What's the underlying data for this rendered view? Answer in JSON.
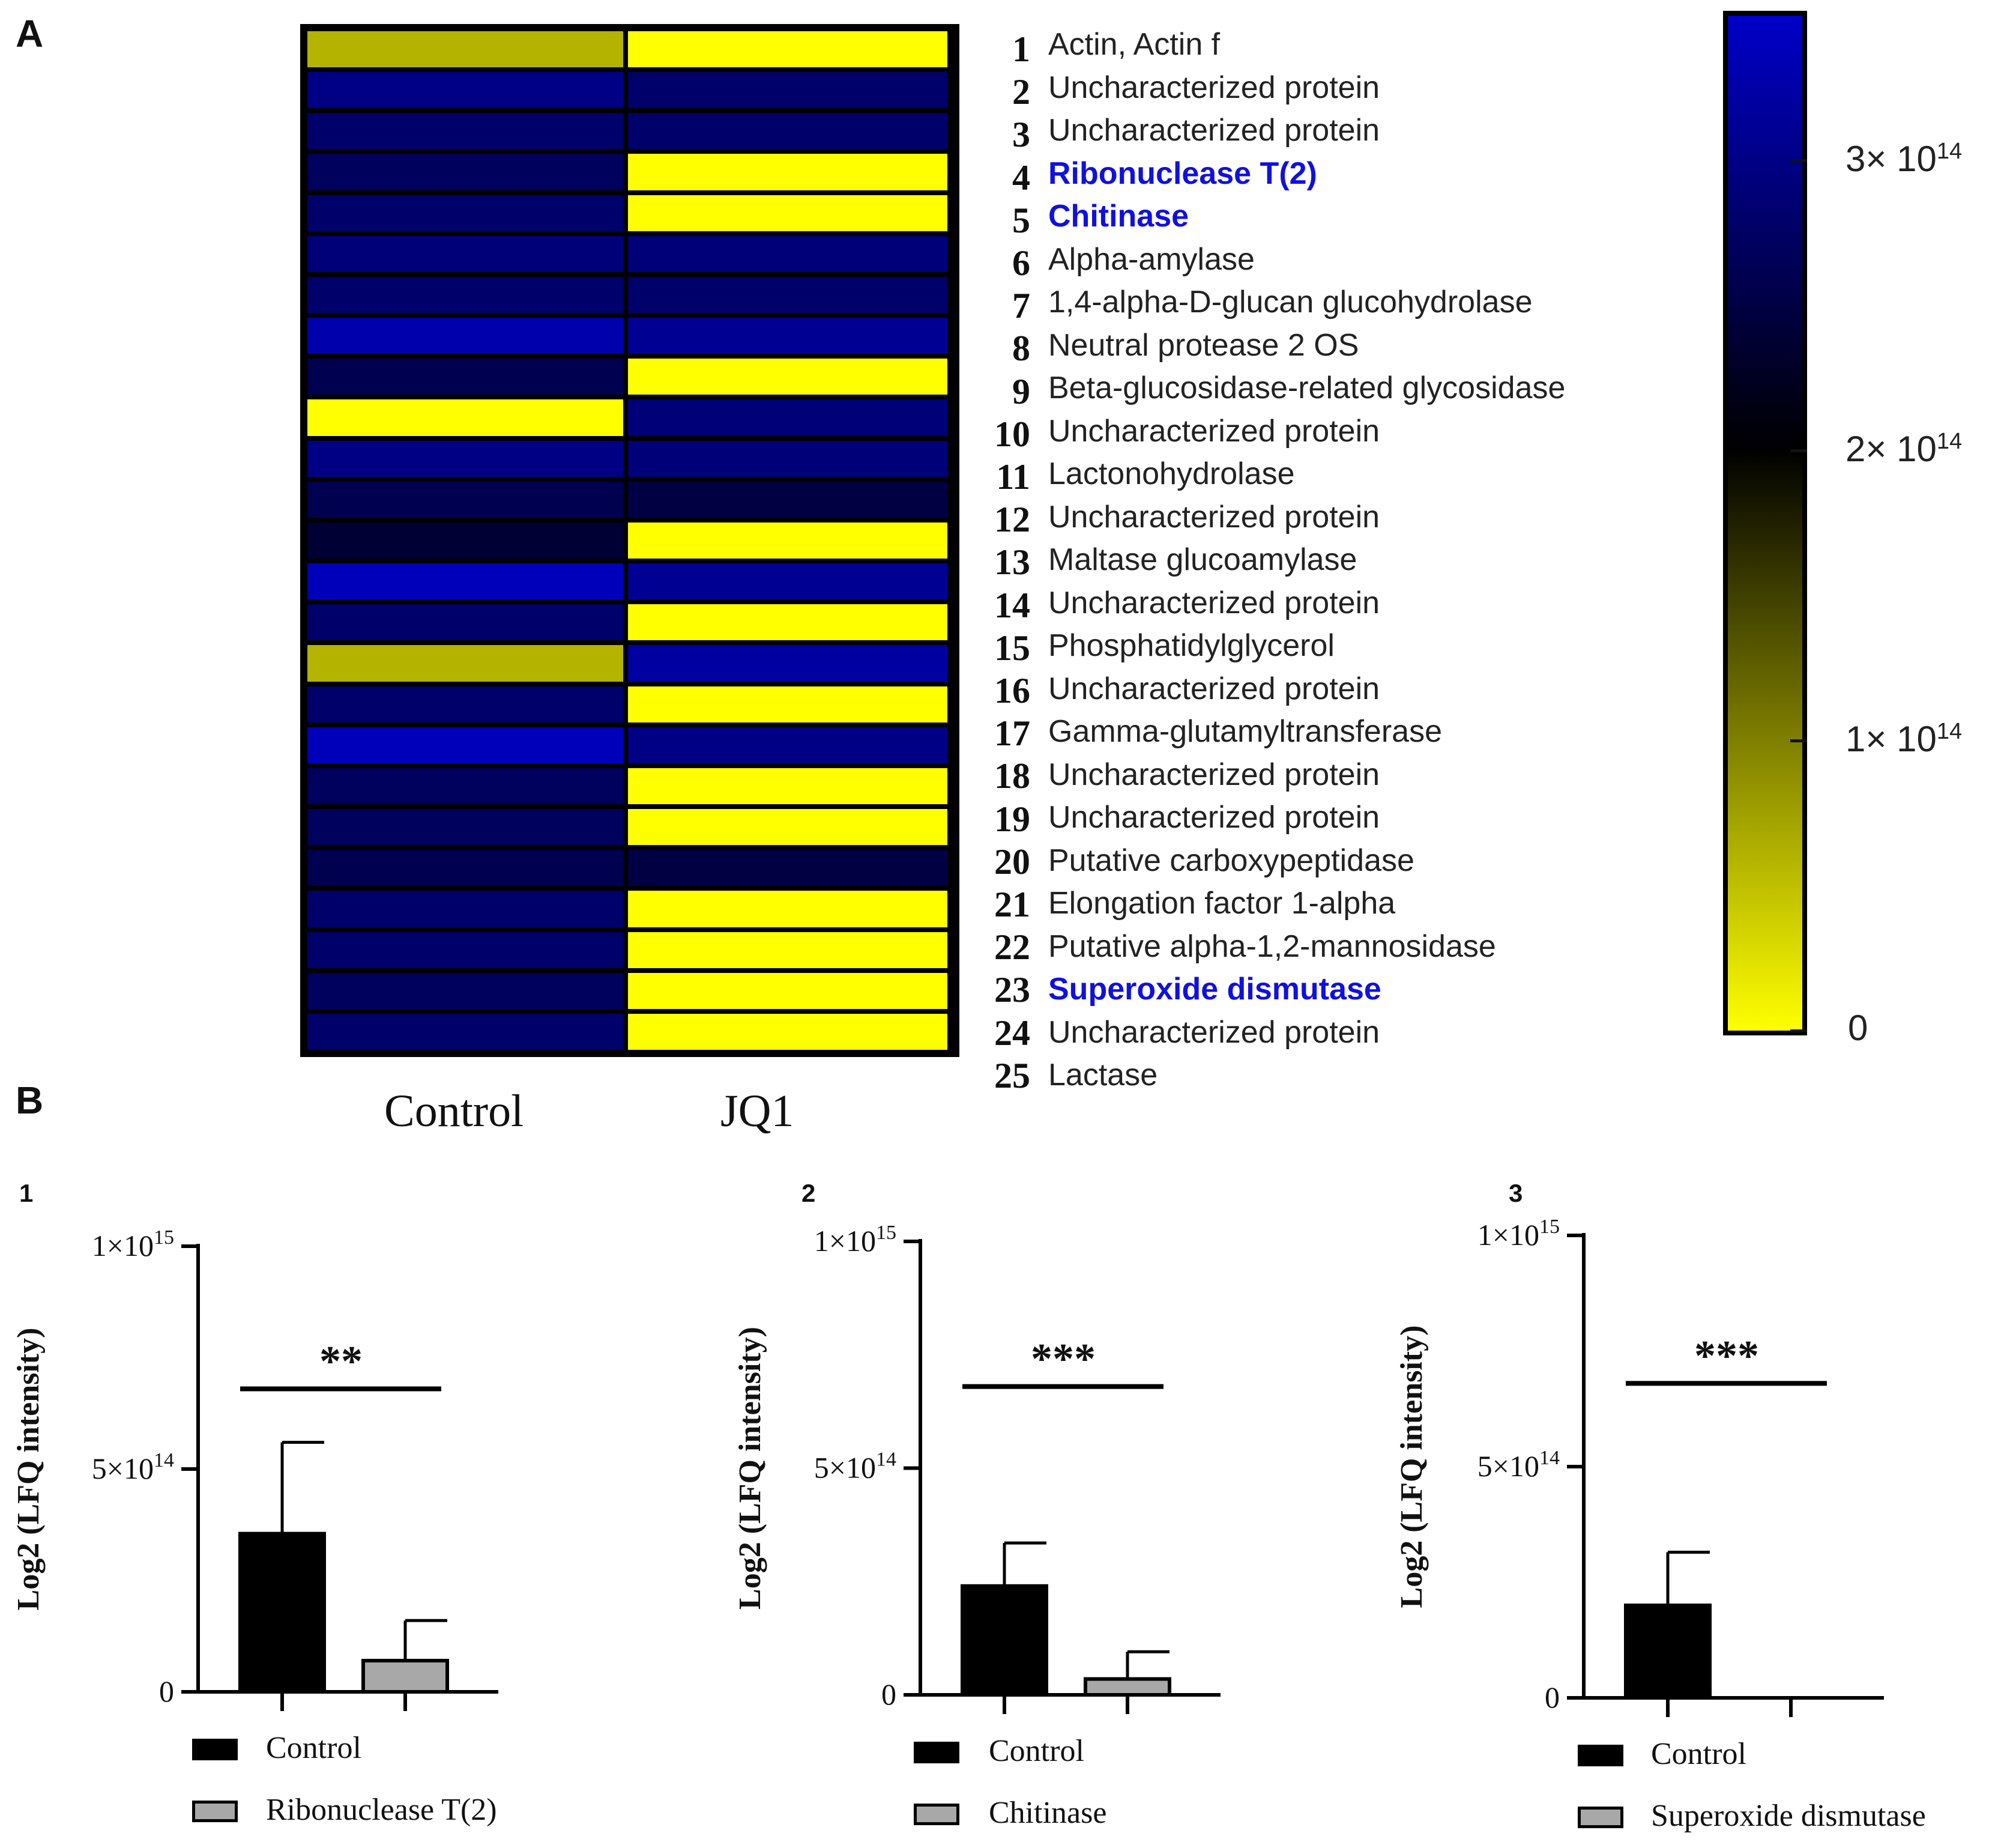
{
  "panel_a": {
    "label": "A",
    "columns": [
      "Control",
      "JQ1"
    ],
    "colorbar": {
      "colors": {
        "low": "#ffff00",
        "mid": "#000000",
        "high": "#0000c8",
        "highlight_text": "#1010e0"
      },
      "ticks": [
        {
          "value": 0,
          "base": "0",
          "exp": ""
        },
        {
          "value": 100000000000000.0,
          "base": "1× 10",
          "exp": "14"
        },
        {
          "value": 200000000000000.0,
          "base": "2× 10",
          "exp": "14"
        },
        {
          "value": 300000000000000.0,
          "base": "3× 10",
          "exp": "14"
        }
      ]
    },
    "rows": [
      {
        "num": "1",
        "name": "Actin, Actin f",
        "highlight": false
      },
      {
        "num": "2",
        "name": "Uncharacterized protein",
        "highlight": false
      },
      {
        "num": "3",
        "name": "Uncharacterized protein",
        "highlight": false
      },
      {
        "num": "4",
        "name": "Ribonuclease T(2)",
        "highlight": true
      },
      {
        "num": "5",
        "name": "Chitinase",
        "highlight": true
      },
      {
        "num": "6",
        "name": "Alpha-amylase",
        "highlight": false
      },
      {
        "num": "7",
        "name": "1,4-alpha-D-glucan glucohydrolase",
        "highlight": false
      },
      {
        "num": "8",
        "name": "Neutral protease 2 OS",
        "highlight": false
      },
      {
        "num": "9",
        "name": "Beta-glucosidase-related glycosidase",
        "highlight": false
      },
      {
        "num": "10",
        "name": "Uncharacterized protein",
        "highlight": false
      },
      {
        "num": "11",
        "name": "Lactonohydrolase",
        "highlight": false
      },
      {
        "num": "12",
        "name": "Uncharacterized protein",
        "highlight": false
      },
      {
        "num": "13",
        "name": "Maltase glucoamylase",
        "highlight": false
      },
      {
        "num": "14",
        "name": "Uncharacterized protein",
        "highlight": false
      },
      {
        "num": "15",
        "name": "Phosphatidylglycerol",
        "highlight": false
      },
      {
        "num": "16",
        "name": "Uncharacterized protein",
        "highlight": false
      },
      {
        "num": "17",
        "name": "Gamma-glutamyltransferase",
        "highlight": false
      },
      {
        "num": "18",
        "name": "Uncharacterized protein",
        "highlight": false
      },
      {
        "num": "19",
        "name": "Uncharacterized protein",
        "highlight": false
      },
      {
        "num": "20",
        "name": "Putative carboxypeptidase",
        "highlight": false
      },
      {
        "num": "21",
        "name": "Elongation factor 1-alpha",
        "highlight": false
      },
      {
        "num": "22",
        "name": "Putative alpha-1,2-mannosidase",
        "highlight": false
      },
      {
        "num": "23",
        "name": "Superoxide dismutase",
        "highlight": true
      },
      {
        "num": "24",
        "name": "Uncharacterized protein",
        "highlight": false
      },
      {
        "num": "25",
        "name": "Lactase",
        "highlight": false
      }
    ]
  },
  "panel_b": {
    "label": "B",
    "colors": {
      "control": "#000000",
      "treated": "#a8a8a8",
      "axis": "#000000"
    }
  },
  "chart_data": [
    {
      "type": "heatmap",
      "title": "",
      "xlabel": "",
      "ylabel": "",
      "columns": [
        "Control",
        "JQ1"
      ],
      "row_count": 25,
      "vrange": [
        0,
        350000000000000.0
      ],
      "values": [
        [
          60000000000000.0,
          0.0
        ],
        [
          300000000000000.0,
          280000000000000.0
        ],
        [
          280000000000000.0,
          280000000000000.0
        ],
        [
          270000000000000.0,
          0.0
        ],
        [
          280000000000000.0,
          0.0
        ],
        [
          290000000000000.0,
          290000000000000.0
        ],
        [
          280000000000000.0,
          280000000000000.0
        ],
        [
          330000000000000.0,
          310000000000000.0
        ],
        [
          260000000000000.0,
          0.0
        ],
        [
          0.0,
          290000000000000.0
        ],
        [
          300000000000000.0,
          290000000000000.0
        ],
        [
          260000000000000.0,
          250000000000000.0
        ],
        [
          240000000000000.0,
          0.0
        ],
        [
          340000000000000.0,
          310000000000000.0
        ],
        [
          280000000000000.0,
          0.0
        ],
        [
          60000000000000.0,
          320000000000000.0
        ],
        [
          280000000000000.0,
          0.0
        ],
        [
          340000000000000.0,
          300000000000000.0
        ],
        [
          270000000000000.0,
          0.0
        ],
        [
          270000000000000.0,
          0.0
        ],
        [
          260000000000000.0,
          250000000000000.0
        ],
        [
          280000000000000.0,
          0.0
        ],
        [
          280000000000000.0,
          0.0
        ],
        [
          270000000000000.0,
          0.0
        ],
        [
          280000000000000.0,
          0.0
        ]
      ]
    },
    {
      "type": "bar",
      "panel": "1",
      "ylabel": "Log2 (LFQ intensity)",
      "ylim": [
        0,
        1000000000000000.0
      ],
      "yticks": [
        {
          "value": 0,
          "base": "0",
          "exp": ""
        },
        {
          "value": 500000000000000.0,
          "base": "5×10",
          "exp": "14"
        },
        {
          "value": 1000000000000000.0,
          "base": "1×10",
          "exp": "15"
        }
      ],
      "categories": [
        "Control",
        "Ribonuclease T(2)"
      ],
      "values": [
        355000000000000.0,
        70000000000000.0
      ],
      "errors": [
        205000000000000.0,
        90000000000000.0
      ],
      "significance": "**"
    },
    {
      "type": "bar",
      "panel": "2",
      "ylabel": "Log2 (LFQ intensity)",
      "ylim": [
        0,
        1000000000000000.0
      ],
      "yticks": [
        {
          "value": 0,
          "base": "0",
          "exp": ""
        },
        {
          "value": 500000000000000.0,
          "base": "5×10",
          "exp": "14"
        },
        {
          "value": 1000000000000000.0,
          "base": "1×10",
          "exp": "15"
        }
      ],
      "categories": [
        "Control",
        "Chitinase"
      ],
      "values": [
        240000000000000.0,
        35000000000000.0
      ],
      "errors": [
        95000000000000.0,
        60000000000000.0
      ],
      "significance": "***"
    },
    {
      "type": "bar",
      "panel": "3",
      "ylabel": "Log2 (LFQ intensity)",
      "ylim": [
        0,
        1000000000000000.0
      ],
      "yticks": [
        {
          "value": 0,
          "base": "0",
          "exp": ""
        },
        {
          "value": 500000000000000.0,
          "base": "5×10",
          "exp": "14"
        },
        {
          "value": 1000000000000000.0,
          "base": "1×10",
          "exp": "15"
        }
      ],
      "categories": [
        "Control",
        "Superoxide dismutase"
      ],
      "values": [
        200000000000000.0,
        0.0
      ],
      "errors": [
        115000000000000.0,
        0.0
      ],
      "significance": "***"
    }
  ]
}
